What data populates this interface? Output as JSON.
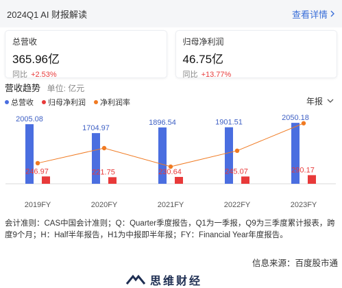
{
  "header": {
    "title": "2024Q1 AI 财报解读",
    "link_label": "查看详情"
  },
  "cards": [
    {
      "label": "总营收",
      "value": "365.96亿",
      "yoy_label": "同比",
      "yoy_value": "+2.53%"
    },
    {
      "label": "归母净利润",
      "value": "46.75亿",
      "yoy_label": "同比",
      "yoy_value": "+13.77%"
    }
  ],
  "section": {
    "title": "营收趋势",
    "unit": "单位: 亿元",
    "period": "年报"
  },
  "legend": [
    {
      "name": "总营收",
      "color": "#4a6ee0"
    },
    {
      "name": "归母净利润",
      "color": "#e83a3a"
    },
    {
      "name": "净利润率",
      "color": "#f07a22"
    }
  ],
  "chart_data": {
    "type": "bar",
    "categories": [
      "2019FY",
      "2020FY",
      "2021FY",
      "2022FY",
      "2023FY"
    ],
    "series": [
      {
        "name": "总营收",
        "type": "bar",
        "color": "#4a6ee0",
        "values": [
          2005.08,
          1704.97,
          1896.54,
          1901.51,
          2050.18
        ]
      },
      {
        "name": "归母净利润",
        "type": "bar",
        "color": "#e83a3a",
        "values": [
          246.97,
          221.75,
          230.64,
          245.07,
          290.17
        ]
      },
      {
        "name": "净利润率",
        "type": "line",
        "color": "#f07a22",
        "values": [
          12.32,
          13.01,
          12.16,
          12.89,
          14.15
        ]
      }
    ],
    "grid": false
  },
  "notes": "会计准则：CAS中国会计准则；Q：Quarter季度报告，Q1为一季报，Q9为三季度累计报表，跨度9个月；H：Half半年报告，H1为中报即半年报；FY：Financial Year年度报告。",
  "source": "信息来源：百度股市通",
  "logo": {
    "text": "思维财经"
  }
}
